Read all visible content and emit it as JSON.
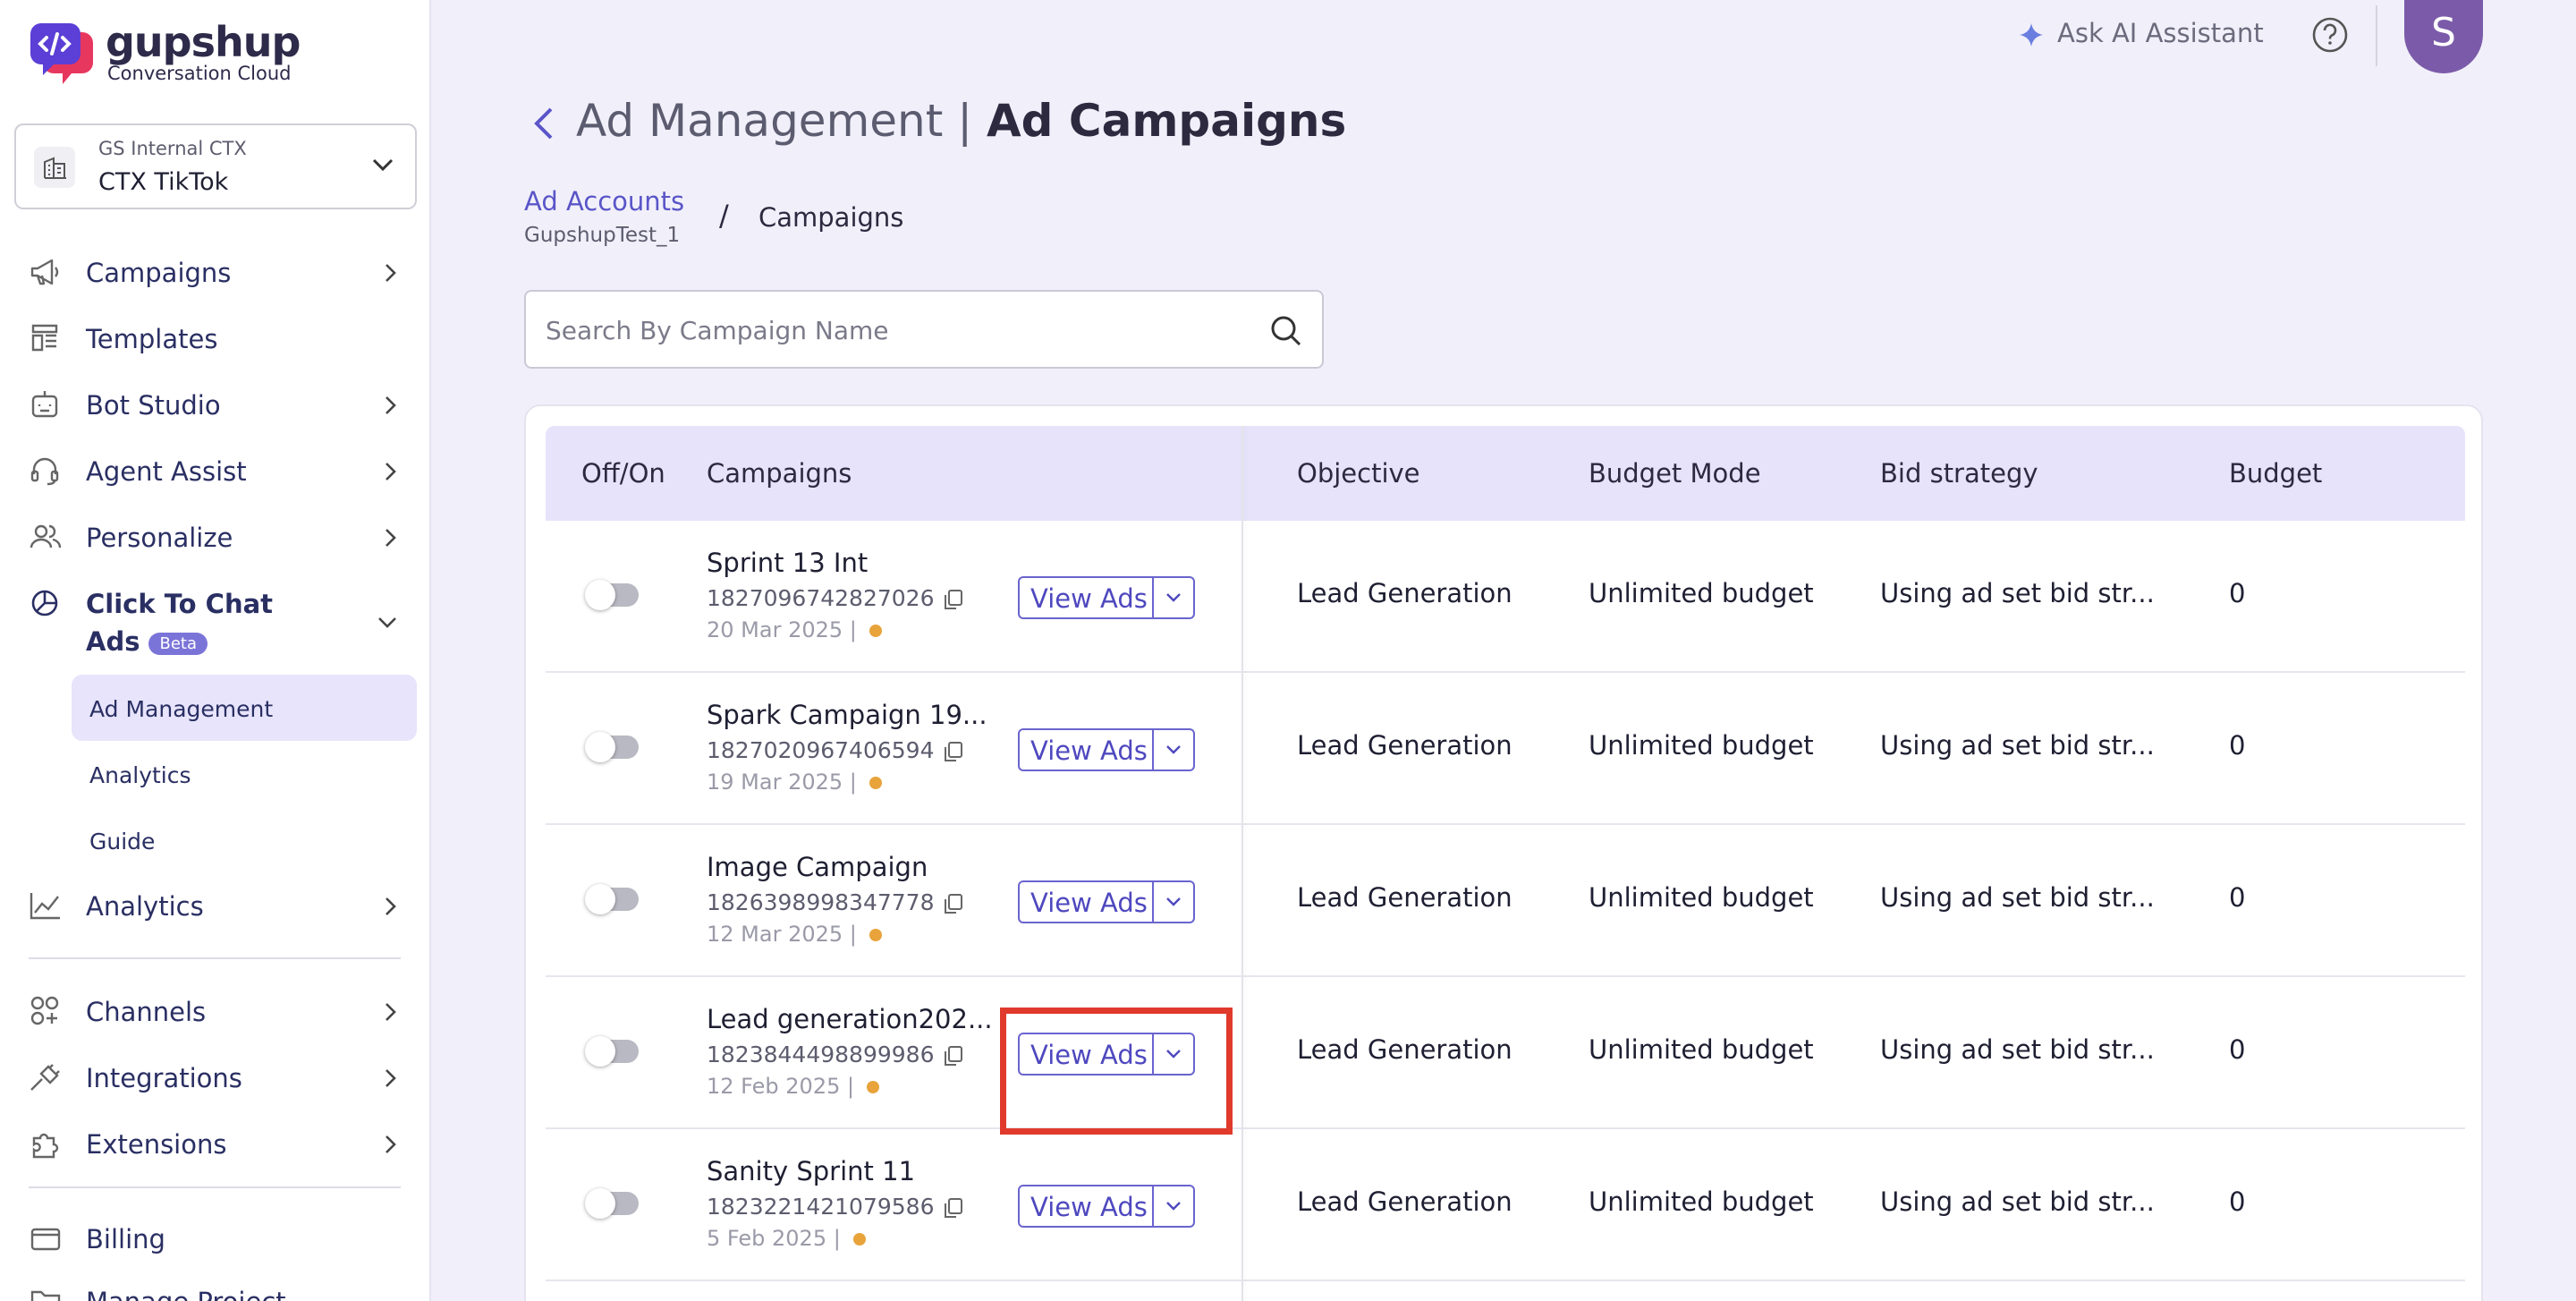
{
  "brand": {
    "name": "gupshup",
    "tagline": "Conversation Cloud"
  },
  "workspace": {
    "org": "GS Internal CTX",
    "project": "CTX TikTok"
  },
  "sidebar": {
    "items": [
      {
        "label": "Campaigns",
        "icon": "megaphone-icon"
      },
      {
        "label": "Templates",
        "icon": "template-icon"
      },
      {
        "label": "Bot Studio",
        "icon": "bot-icon"
      },
      {
        "label": "Agent Assist",
        "icon": "headset-icon"
      },
      {
        "label": "Personalize",
        "icon": "users-icon"
      },
      {
        "label": "Click To Chat",
        "label2": "Ads",
        "badge": "Beta",
        "icon": "pie-chart-icon"
      },
      {
        "label": "Analytics",
        "icon": "line-chart-icon"
      },
      {
        "label": "Channels",
        "icon": "channels-icon"
      },
      {
        "label": "Integrations",
        "icon": "plug-icon"
      },
      {
        "label": "Extensions",
        "icon": "puzzle-icon"
      },
      {
        "label": "Billing",
        "icon": "wallet-icon"
      },
      {
        "label": "Manage Project",
        "icon": "folder-icon"
      }
    ],
    "sub_items": [
      {
        "label": "Ad Management"
      },
      {
        "label": "Analytics"
      },
      {
        "label": "Guide"
      }
    ]
  },
  "topbar": {
    "ai_assistant": "Ask AI Assistant",
    "avatar_initial": "S"
  },
  "page": {
    "title_prefix": "Ad Management |",
    "title_bold": "Ad Campaigns"
  },
  "breadcrumb": {
    "accounts": "Ad Accounts",
    "account_name": "GupshupTest_1",
    "separator": "/",
    "current": "Campaigns"
  },
  "search": {
    "placeholder": "Search By Campaign Name"
  },
  "table": {
    "headers": {
      "toggle": "Off/On",
      "campaigns": "Campaigns",
      "objective": "Objective",
      "budget_mode": "Budget Mode",
      "bid_strategy": "Bid strategy",
      "budget": "Budget"
    },
    "view_ads_label": "View Ads",
    "rows": [
      {
        "name": "Sprint 13 Int",
        "id": "1827096742827026",
        "date": "20 Mar 2025 |",
        "objective": "Lead Generation",
        "budget_mode": "Unlimited budget",
        "bid_strategy": "Using ad set bid str...",
        "budget": "0"
      },
      {
        "name": "Spark Campaign 19...",
        "id": "1827020967406594",
        "date": "19 Mar 2025 |",
        "objective": "Lead Generation",
        "budget_mode": "Unlimited budget",
        "bid_strategy": "Using ad set bid str...",
        "budget": "0"
      },
      {
        "name": "Image Campaign",
        "id": "1826398998347778",
        "date": "12 Mar 2025 |",
        "objective": "Lead Generation",
        "budget_mode": "Unlimited budget",
        "bid_strategy": "Using ad set bid str...",
        "budget": "0"
      },
      {
        "name": "Lead generation202...",
        "id": "1823844498899986",
        "date": "12 Feb 2025 |",
        "objective": "Lead Generation",
        "budget_mode": "Unlimited budget",
        "bid_strategy": "Using ad set bid str...",
        "budget": "0"
      },
      {
        "name": "Sanity Sprint 11",
        "id": "1823221421079586",
        "date": "5 Feb 2025 |",
        "objective": "Lead Generation",
        "budget_mode": "Unlimited budget",
        "bid_strategy": "Using ad set bid str...",
        "budget": "0"
      }
    ]
  },
  "colors": {
    "accent": "#5a55c8",
    "highlight": "#e03a2c",
    "status_pending": "#e8a33b",
    "header_bg": "#e6e3fa"
  }
}
